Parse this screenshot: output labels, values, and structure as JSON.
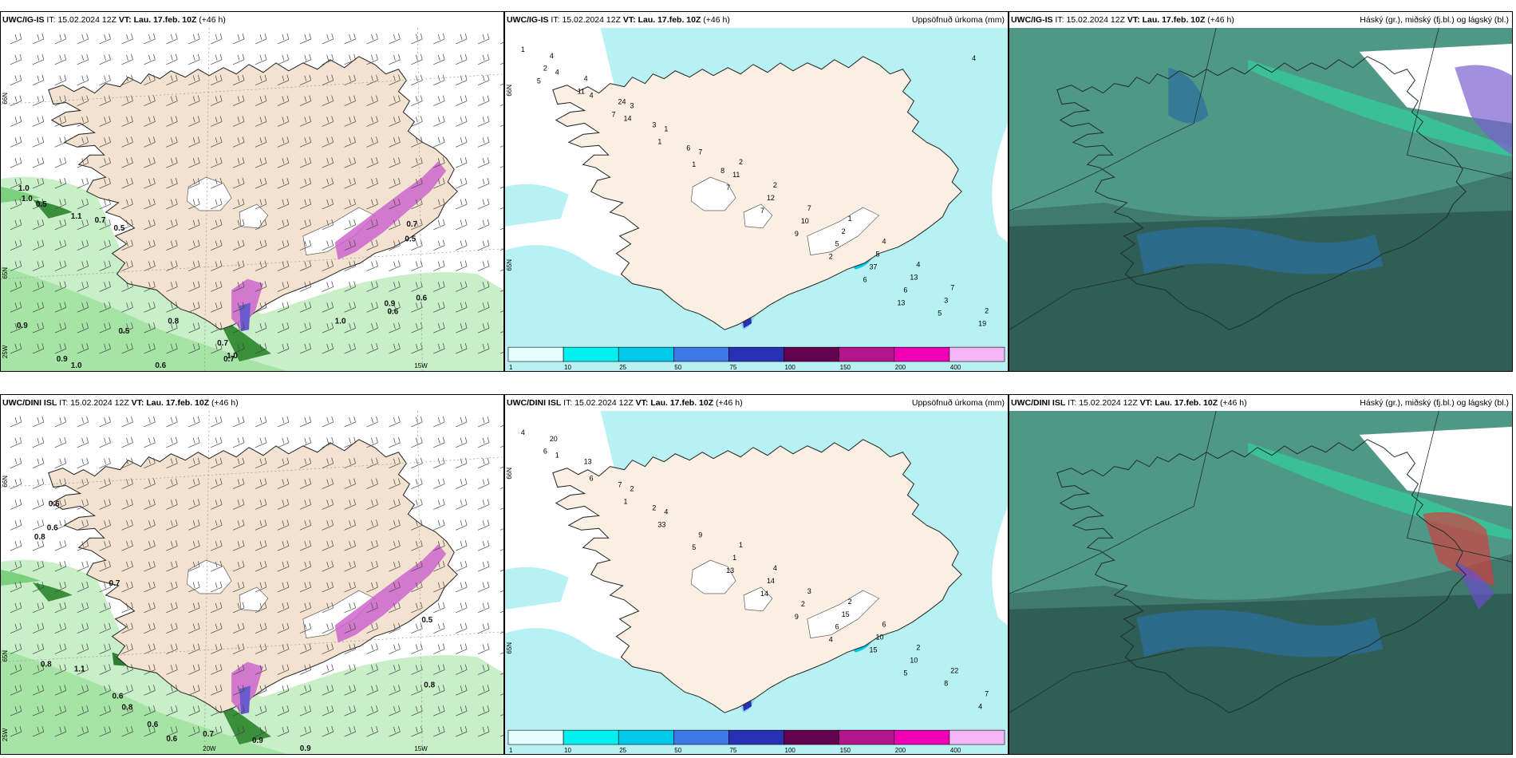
{
  "panels": {
    "igis_wind": {
      "model": "UWC/IG-IS",
      "it_label": "IT:",
      "it": "15.02.2024 12Z",
      "vt_label": "VT:",
      "vt": "Lau. 17.feb. 10Z",
      "lead": "(+46 h)",
      "title": ""
    },
    "igis_precip": {
      "model": "UWC/IG-IS",
      "it_label": "IT:",
      "it": "15.02.2024 12Z",
      "vt_label": "VT:",
      "vt": "Lau. 17.feb. 10Z",
      "lead": "(+46 h)",
      "title": "Uppsöfnuð úrkoma (mm)"
    },
    "igis_cloud": {
      "model": "UWC/IG-IS",
      "it_label": "IT:",
      "it": "15.02.2024 12Z",
      "vt_label": "VT:",
      "vt": "Lau. 17.feb. 10Z",
      "lead": "(+46 h)",
      "title": "Háský (gr.), miðský (fj.bl.) og lágský (bl.)"
    },
    "dini_wind": {
      "model": "UWC/DINI ISL",
      "it_label": "IT:",
      "it": "15.02.2024 12Z",
      "vt_label": "VT:",
      "vt": "Lau. 17.feb. 10Z",
      "lead": "(+46 h)",
      "title": ""
    },
    "dini_precip": {
      "model": "UWC/DINI ISL",
      "it_label": "IT:",
      "it": "15.02.2024 12Z",
      "vt_label": "VT:",
      "vt": "Lau. 17.feb. 10Z",
      "lead": "(+46 h)",
      "title": "Uppsöfnuð úrkoma (mm)"
    },
    "dini_cloud": {
      "model": "UWC/DINI ISL",
      "it_label": "IT:",
      "it": "15.02.2024 12Z",
      "vt_label": "VT:",
      "vt": "Lau. 17.feb. 10Z",
      "lead": "(+46 h)",
      "title": "Háský (gr.), miðský (fj.bl.) og lágský (bl.)"
    }
  },
  "axis_labels": {
    "lat66": "66N",
    "lat65": "65N",
    "lon25": "25W",
    "lon20": "20W",
    "lon15": "15W"
  },
  "colorbar": {
    "ticks": [
      "1",
      "10",
      "25",
      "50",
      "75",
      "100",
      "150",
      "200",
      "400"
    ],
    "colors": [
      "#e6ffff",
      "#00f0f0",
      "#00c8e8",
      "#3c78e6",
      "#2830b4",
      "#640050",
      "#b4148c",
      "#f000b4",
      "#f5b4f5"
    ]
  },
  "igis_wind_values": [
    {
      "t": "1.0"
    },
    {
      "t": "1.0"
    },
    {
      "t": "0.5"
    },
    {
      "t": "1.1"
    },
    {
      "t": "0.7"
    },
    {
      "t": "0.5"
    },
    {
      "t": "0.9"
    },
    {
      "t": "0.5"
    },
    {
      "t": "0.8"
    },
    {
      "t": "0.9"
    },
    {
      "t": "1.0"
    },
    {
      "t": "0.6"
    },
    {
      "t": "0.7"
    },
    {
      "t": "0.7"
    },
    {
      "t": "1.0"
    },
    {
      "t": "0.9"
    },
    {
      "t": "0.6"
    },
    {
      "t": "0.6"
    },
    {
      "t": "0.7"
    },
    {
      "t": "0.5"
    },
    {
      "t": "1.0"
    }
  ],
  "dini_wind_values": [
    {
      "t": "0.6"
    },
    {
      "t": "0.6"
    },
    {
      "t": "0.8"
    },
    {
      "t": "0.7"
    },
    {
      "t": "0.8"
    },
    {
      "t": "1.1"
    },
    {
      "t": "0.8"
    },
    {
      "t": "0.6"
    },
    {
      "t": "0.6"
    },
    {
      "t": "0.7"
    },
    {
      "t": "0.9"
    },
    {
      "t": "0.9"
    },
    {
      "t": "0.8"
    },
    {
      "t": "0.5"
    },
    {
      "t": "0.6"
    }
  ],
  "igis_precip_values": [
    {
      "t": "1"
    },
    {
      "t": "3"
    },
    {
      "t": "2"
    },
    {
      "t": "1"
    },
    {
      "t": "4"
    },
    {
      "t": "1"
    },
    {
      "t": "2"
    },
    {
      "t": "4"
    },
    {
      "t": "4"
    },
    {
      "t": "7"
    },
    {
      "t": "7"
    },
    {
      "t": "4"
    },
    {
      "t": "14"
    },
    {
      "t": "11"
    },
    {
      "t": "2"
    },
    {
      "t": "7"
    },
    {
      "t": "1"
    },
    {
      "t": "12"
    },
    {
      "t": "5"
    },
    {
      "t": "2"
    },
    {
      "t": "1"
    },
    {
      "t": "10"
    },
    {
      "t": "13"
    },
    {
      "t": "4"
    },
    {
      "t": "7"
    },
    {
      "t": "5"
    },
    {
      "t": "3"
    },
    {
      "t": "4"
    },
    {
      "t": "7"
    },
    {
      "t": "37"
    },
    {
      "t": "19"
    },
    {
      "t": "24"
    },
    {
      "t": "9"
    },
    {
      "t": "6"
    },
    {
      "t": "2"
    },
    {
      "t": "3"
    },
    {
      "t": "2"
    },
    {
      "t": "5"
    },
    {
      "t": "11"
    },
    {
      "t": "6"
    },
    {
      "t": "6"
    },
    {
      "t": "4"
    },
    {
      "t": "7"
    },
    {
      "t": "8"
    },
    {
      "t": "13"
    },
    {
      "t": "5"
    }
  ],
  "dini_precip_values": [
    {
      "t": "4"
    },
    {
      "t": "2"
    },
    {
      "t": "1"
    },
    {
      "t": "2"
    },
    {
      "t": "1"
    },
    {
      "t": "4"
    },
    {
      "t": "4"
    },
    {
      "t": "6"
    },
    {
      "t": "6"
    },
    {
      "t": "9"
    },
    {
      "t": "3"
    },
    {
      "t": "2"
    },
    {
      "t": "1"
    },
    {
      "t": "1"
    },
    {
      "t": "15"
    },
    {
      "t": "22"
    },
    {
      "t": "33"
    },
    {
      "t": "14"
    },
    {
      "t": "10"
    },
    {
      "t": "7"
    },
    {
      "t": "5"
    },
    {
      "t": "2"
    },
    {
      "t": "10"
    },
    {
      "t": "20"
    },
    {
      "t": "13"
    },
    {
      "t": "6"
    },
    {
      "t": "8"
    },
    {
      "t": "13"
    },
    {
      "t": "14"
    },
    {
      "t": "15"
    },
    {
      "t": "4"
    },
    {
      "t": "7"
    },
    {
      "t": "9"
    },
    {
      "t": "5"
    },
    {
      "t": "6"
    },
    {
      "t": "2"
    },
    {
      "t": "4"
    }
  ]
}
